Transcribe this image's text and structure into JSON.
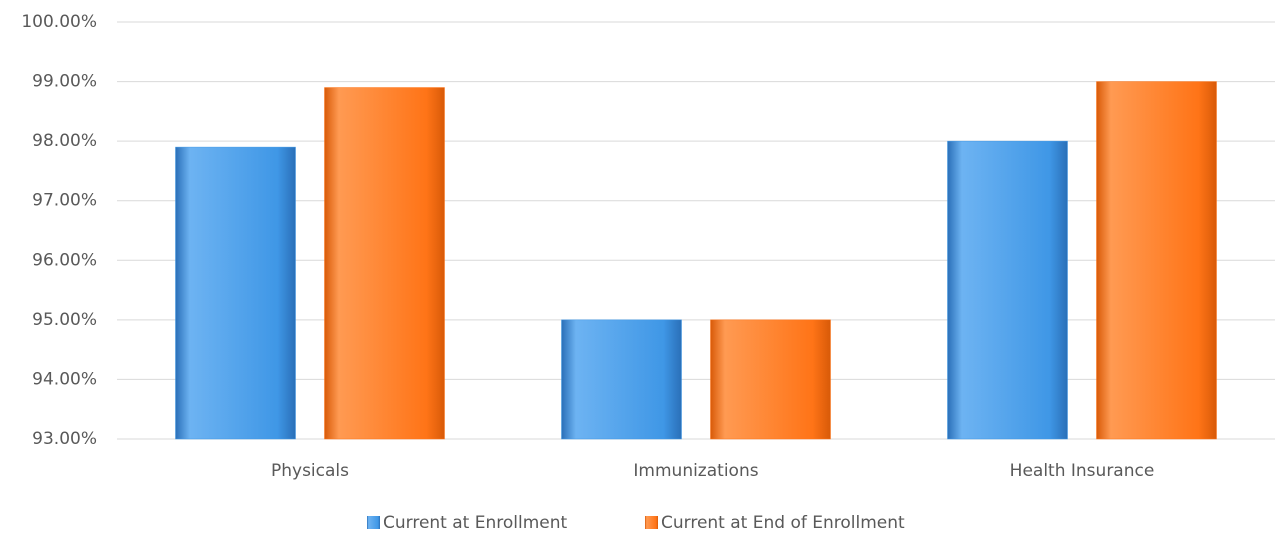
{
  "chart_data": {
    "type": "bar",
    "categories": [
      "Physicals",
      "Immunizations",
      "Health Insurance"
    ],
    "series": [
      {
        "name": "Current at Enrollment",
        "color": "#3f97e6",
        "values": [
          97.9,
          95,
          98
        ]
      },
      {
        "name": "Current at End of Enrollment",
        "color": "#ff7417",
        "values": [
          98.9,
          95,
          99
        ]
      }
    ],
    "ylim": [
      93,
      100
    ],
    "yticks": [
      {
        "value": 93,
        "label": "93.00%"
      },
      {
        "value": 94,
        "label": "94.00%"
      },
      {
        "value": 95,
        "label": "95.00%"
      },
      {
        "value": 96,
        "label": "96.00%"
      },
      {
        "value": 97,
        "label": "97.00%"
      },
      {
        "value": 98,
        "label": "98.00%"
      },
      {
        "value": 99,
        "label": "99.00%"
      },
      {
        "value": 100,
        "label": "100.00%"
      }
    ],
    "grid": true,
    "legend": "bottom"
  }
}
